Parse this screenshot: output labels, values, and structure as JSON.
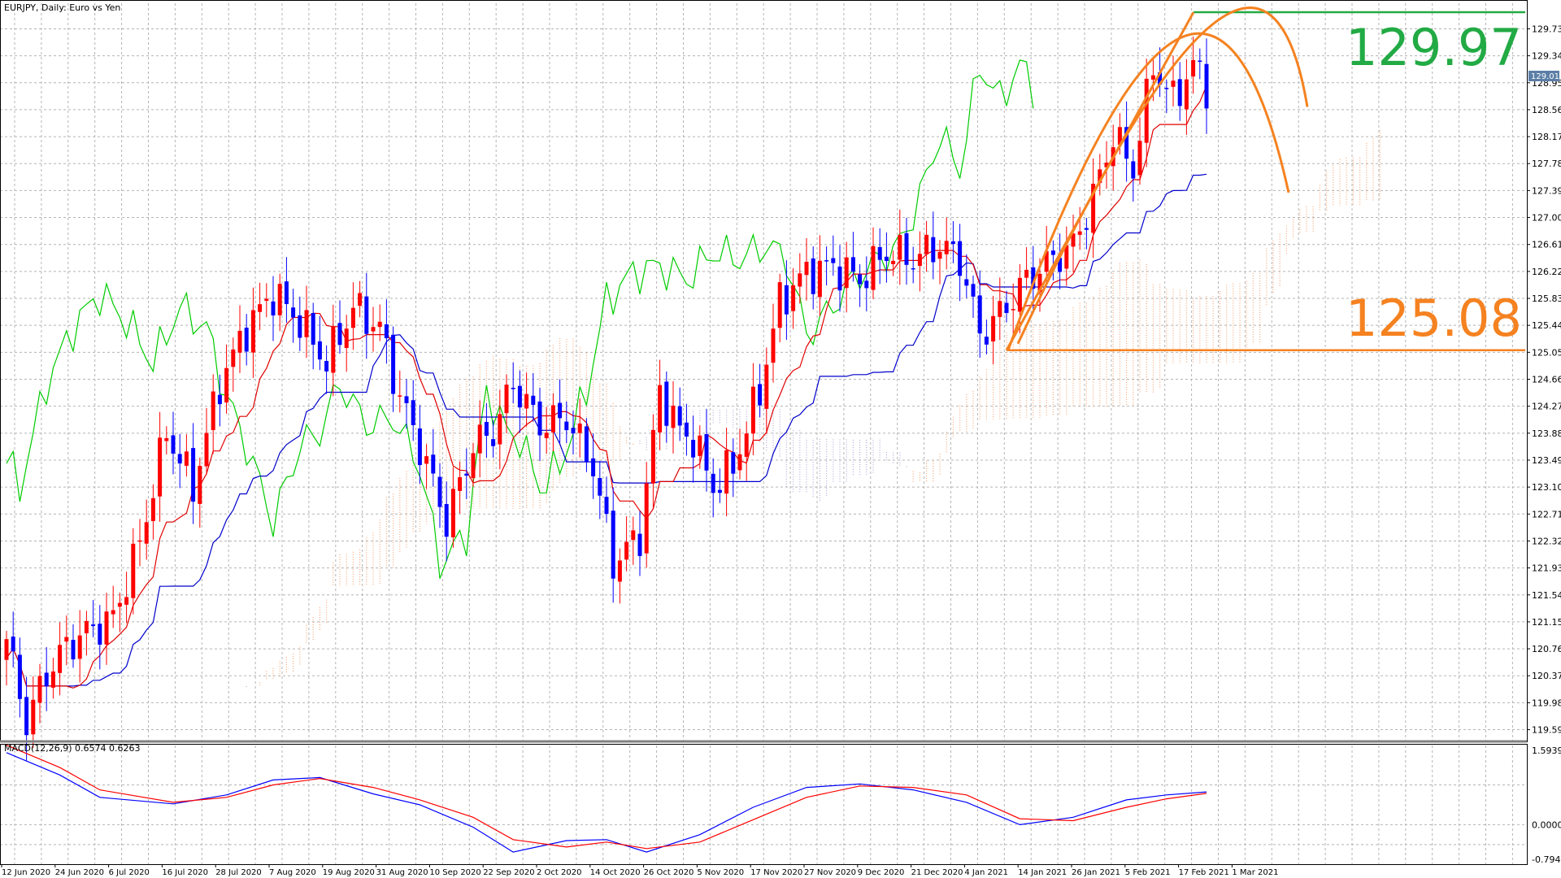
{
  "chart_data": {
    "type": "candlestick",
    "header": {
      "symbol_label": "EURJPY, Daily:  Euro vs Yen"
    },
    "price_axis": {
      "range": [
        119.42,
        130.1
      ],
      "ticks": [
        "129.730",
        "129.340",
        "128.950",
        "128.560",
        "128.170",
        "127.780",
        "127.390",
        "127.000",
        "126.610",
        "126.220",
        "125.830",
        "125.440",
        "125.050",
        "124.660",
        "124.270",
        "123.880",
        "123.490",
        "123.100",
        "122.710",
        "122.320",
        "121.930",
        "121.540",
        "121.150",
        "120.760",
        "120.370",
        "119.980",
        "119.590"
      ],
      "current_price": {
        "value": 129.018,
        "label": "129.018"
      }
    },
    "annotations": [
      {
        "label": "129.97",
        "value": 129.97,
        "color": "#22aa44"
      },
      {
        "label": "125.08",
        "value": 125.08,
        "color": "#f58220"
      }
    ],
    "x_axis": {
      "labels": [
        "12 Jun 2020",
        "24 Jun 2020",
        "6 Jul 2020",
        "16 Jul 2020",
        "28 Jul 2020",
        "7 Aug 2020",
        "19 Aug 2020",
        "31 Aug 2020",
        "10 Sep 2020",
        "22 Sep 2020",
        "2 Oct 2020",
        "14 Oct 2020",
        "26 Oct 2020",
        "5 Nov 2020",
        "17 Nov 2020",
        "27 Nov 2020",
        "9 Dec 2020",
        "21 Dec 2020",
        "4 Jan 2021",
        "14 Jan 2021",
        "26 Jan 2021",
        "5 Feb 2021",
        "17 Feb 2021",
        "1 Mar 2021"
      ]
    },
    "close_anchors": [
      [
        0,
        120.9
      ],
      [
        3,
        119.7
      ],
      [
        6,
        120.4
      ],
      [
        9,
        120.8
      ],
      [
        12,
        121.0
      ],
      [
        16,
        121.2
      ],
      [
        20,
        122.3
      ],
      [
        24,
        123.9
      ],
      [
        28,
        123.1
      ],
      [
        32,
        124.6
      ],
      [
        36,
        125.4
      ],
      [
        40,
        125.9
      ],
      [
        44,
        125.5
      ],
      [
        48,
        124.9
      ],
      [
        52,
        125.7
      ],
      [
        56,
        125.4
      ],
      [
        59,
        124.4
      ],
      [
        62,
        123.7
      ],
      [
        66,
        122.6
      ],
      [
        70,
        123.7
      ],
      [
        73,
        123.9
      ],
      [
        76,
        124.6
      ],
      [
        80,
        124.0
      ],
      [
        84,
        124.1
      ],
      [
        88,
        123.4
      ],
      [
        91,
        122.0
      ],
      [
        95,
        122.4
      ],
      [
        98,
        124.5
      ],
      [
        101,
        123.9
      ],
      [
        103,
        123.8
      ],
      [
        106,
        123.1
      ],
      [
        109,
        123.4
      ],
      [
        113,
        124.5
      ],
      [
        116,
        125.8
      ],
      [
        120,
        126.2
      ],
      [
        124,
        126.3
      ],
      [
        128,
        126.1
      ],
      [
        132,
        126.5
      ],
      [
        136,
        126.4
      ],
      [
        140,
        126.6
      ],
      [
        143,
        126.4
      ],
      [
        146,
        125.3
      ],
      [
        149,
        125.6
      ],
      [
        153,
        126.1
      ],
      [
        157,
        126.4
      ],
      [
        160,
        126.6
      ],
      [
        163,
        127.3
      ],
      [
        166,
        128.2
      ],
      [
        169,
        127.7
      ],
      [
        172,
        129.2
      ],
      [
        175,
        128.7
      ],
      [
        178,
        129.2
      ],
      [
        180,
        128.9
      ]
    ],
    "ichimoku": {
      "tenkan_color": "#e00000",
      "kijun_color": "#0000cc",
      "chikou_color": "#00cc00",
      "cloud_bull_color": "#f5a97a",
      "cloud_bear_color": "#b8a8d8"
    },
    "macd": {
      "label": "MACD(12,26,9) 0.6574 0.6263",
      "range": [
        -0.7944,
        1.5939
      ],
      "ticks": [
        "1.5939",
        "0.0000",
        "-0.7944"
      ]
    },
    "colors": {
      "bull": "#ff0000",
      "bear": "#0000ff",
      "grid": "#b4b4b4",
      "axis": "#000000"
    }
  }
}
